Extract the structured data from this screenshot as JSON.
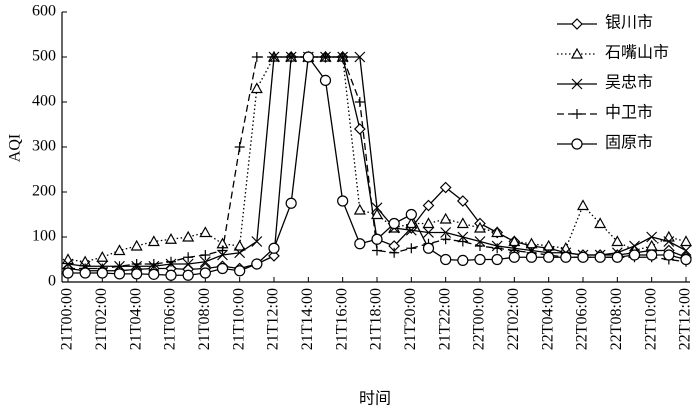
{
  "chart_data": {
    "type": "line",
    "y_label": "AQI",
    "x_label": "时间",
    "categories": [
      "21T00:00",
      null,
      "21T02:00",
      null,
      "21T04:00",
      null,
      "21T06:00",
      null,
      "21T08:00",
      null,
      "21T10:00",
      null,
      "21T12:00",
      null,
      "21T14:00",
      null,
      "21T16:00",
      null,
      "21T18:00",
      null,
      "21T20:00",
      null,
      "21T22:00",
      null,
      "22T00:00",
      null,
      "22T02:00",
      null,
      "22T04:00",
      null,
      "22T06:00",
      null,
      "22T08:00",
      null,
      "22T10:00",
      null,
      "22T12:00"
    ],
    "ylim": [
      0,
      600
    ],
    "yticks": [
      0,
      100,
      200,
      300,
      400,
      500,
      600
    ],
    "legend": "upper right",
    "series": [
      {
        "name": "银川市",
        "color": "#000000",
        "dash": "solid",
        "marker": "diamond",
        "values": [
          30,
          25,
          25,
          25,
          28,
          30,
          30,
          28,
          30,
          35,
          30,
          40,
          58,
          500,
          500,
          500,
          500,
          340,
          95,
          80,
          120,
          170,
          210,
          180,
          130,
          110,
          90,
          80,
          75,
          65,
          60,
          60,
          60,
          65,
          70,
          70,
          55
        ]
      },
      {
        "name": "石嘴山市",
        "color": "#000000",
        "dash": "dotted",
        "marker": "triangle",
        "values": [
          50,
          45,
          55,
          70,
          80,
          90,
          95,
          100,
          110,
          85,
          80,
          430,
          500,
          500,
          500,
          500,
          500,
          160,
          150,
          120,
          130,
          130,
          140,
          130,
          120,
          110,
          90,
          85,
          80,
          75,
          170,
          130,
          90,
          70,
          80,
          100,
          90
        ]
      },
      {
        "name": "吴忠市",
        "color": "#000000",
        "dash": "solid",
        "marker": "x",
        "values": [
          40,
          35,
          35,
          35,
          35,
          35,
          40,
          40,
          45,
          60,
          65,
          90,
          500,
          500,
          500,
          500,
          500,
          500,
          165,
          120,
          115,
          110,
          110,
          100,
          90,
          80,
          75,
          70,
          65,
          65,
          60,
          60,
          65,
          80,
          100,
          90,
          70
        ]
      },
      {
        "name": "中卫市",
        "color": "#000000",
        "dash": "dashed",
        "marker": "plus",
        "values": [
          30,
          30,
          30,
          35,
          40,
          40,
          45,
          55,
          60,
          70,
          300,
          500,
          500,
          500,
          500,
          500,
          500,
          400,
          70,
          65,
          75,
          85,
          95,
          90,
          80,
          75,
          70,
          65,
          60,
          55,
          55,
          55,
          55,
          55,
          55,
          50,
          45
        ]
      },
      {
        "name": "固原市",
        "color": "#000000",
        "dash": "solid",
        "marker": "circle",
        "values": [
          20,
          20,
          20,
          18,
          18,
          17,
          15,
          15,
          20,
          30,
          25,
          40,
          75,
          175,
          500,
          448,
          180,
          85,
          95,
          130,
          150,
          75,
          50,
          48,
          50,
          50,
          55,
          55,
          55,
          55,
          55,
          55,
          55,
          60,
          60,
          60,
          50
        ]
      }
    ]
  }
}
